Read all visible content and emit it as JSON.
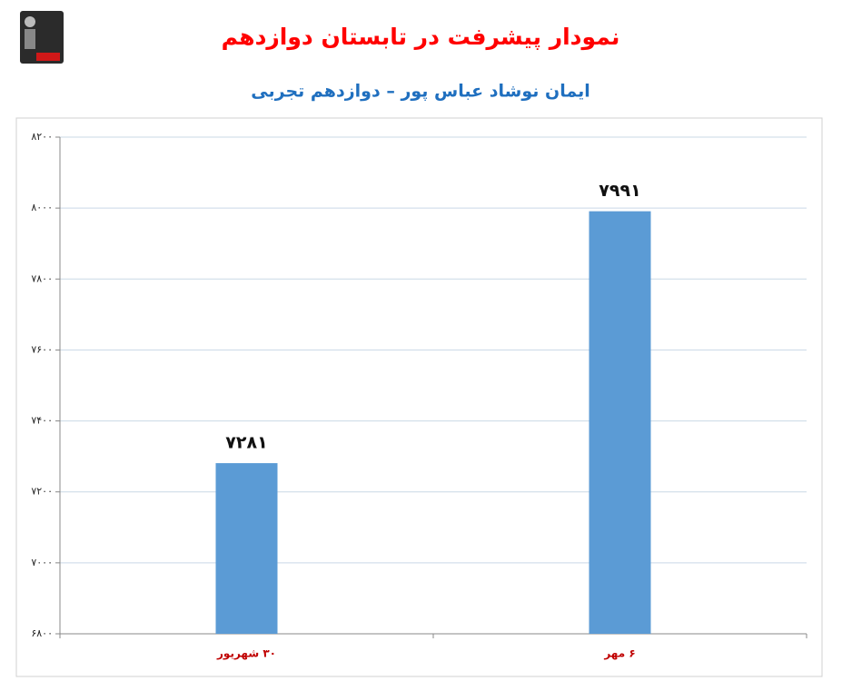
{
  "chart_data": {
    "type": "bar",
    "title": "نمودار پیشرفت در تابستان دوازدهم",
    "subtitle": "ایمان نوشاد عباس پور – دوازدهم تجربی",
    "categories": [
      "۳۰ شهریور",
      "۶ مهر"
    ],
    "values": [
      7281,
      7991
    ],
    "value_labels": [
      "۷۲۸۱",
      "۷۹۹۱"
    ],
    "color": "#5b9bd5",
    "ylim": [
      6800,
      8200
    ],
    "yticks": [
      {
        "value": 6800,
        "label": "۶۸۰۰"
      },
      {
        "value": 7000,
        "label": "۷۰۰۰"
      },
      {
        "value": 7200,
        "label": "۷۲۰۰"
      },
      {
        "value": 7400,
        "label": "۷۴۰۰"
      },
      {
        "value": 7600,
        "label": "۷۶۰۰"
      },
      {
        "value": 7800,
        "label": "۷۸۰۰"
      },
      {
        "value": 8000,
        "label": "۸۰۰۰"
      },
      {
        "value": 8200,
        "label": "۸۲۰۰"
      }
    ],
    "grid": true
  }
}
